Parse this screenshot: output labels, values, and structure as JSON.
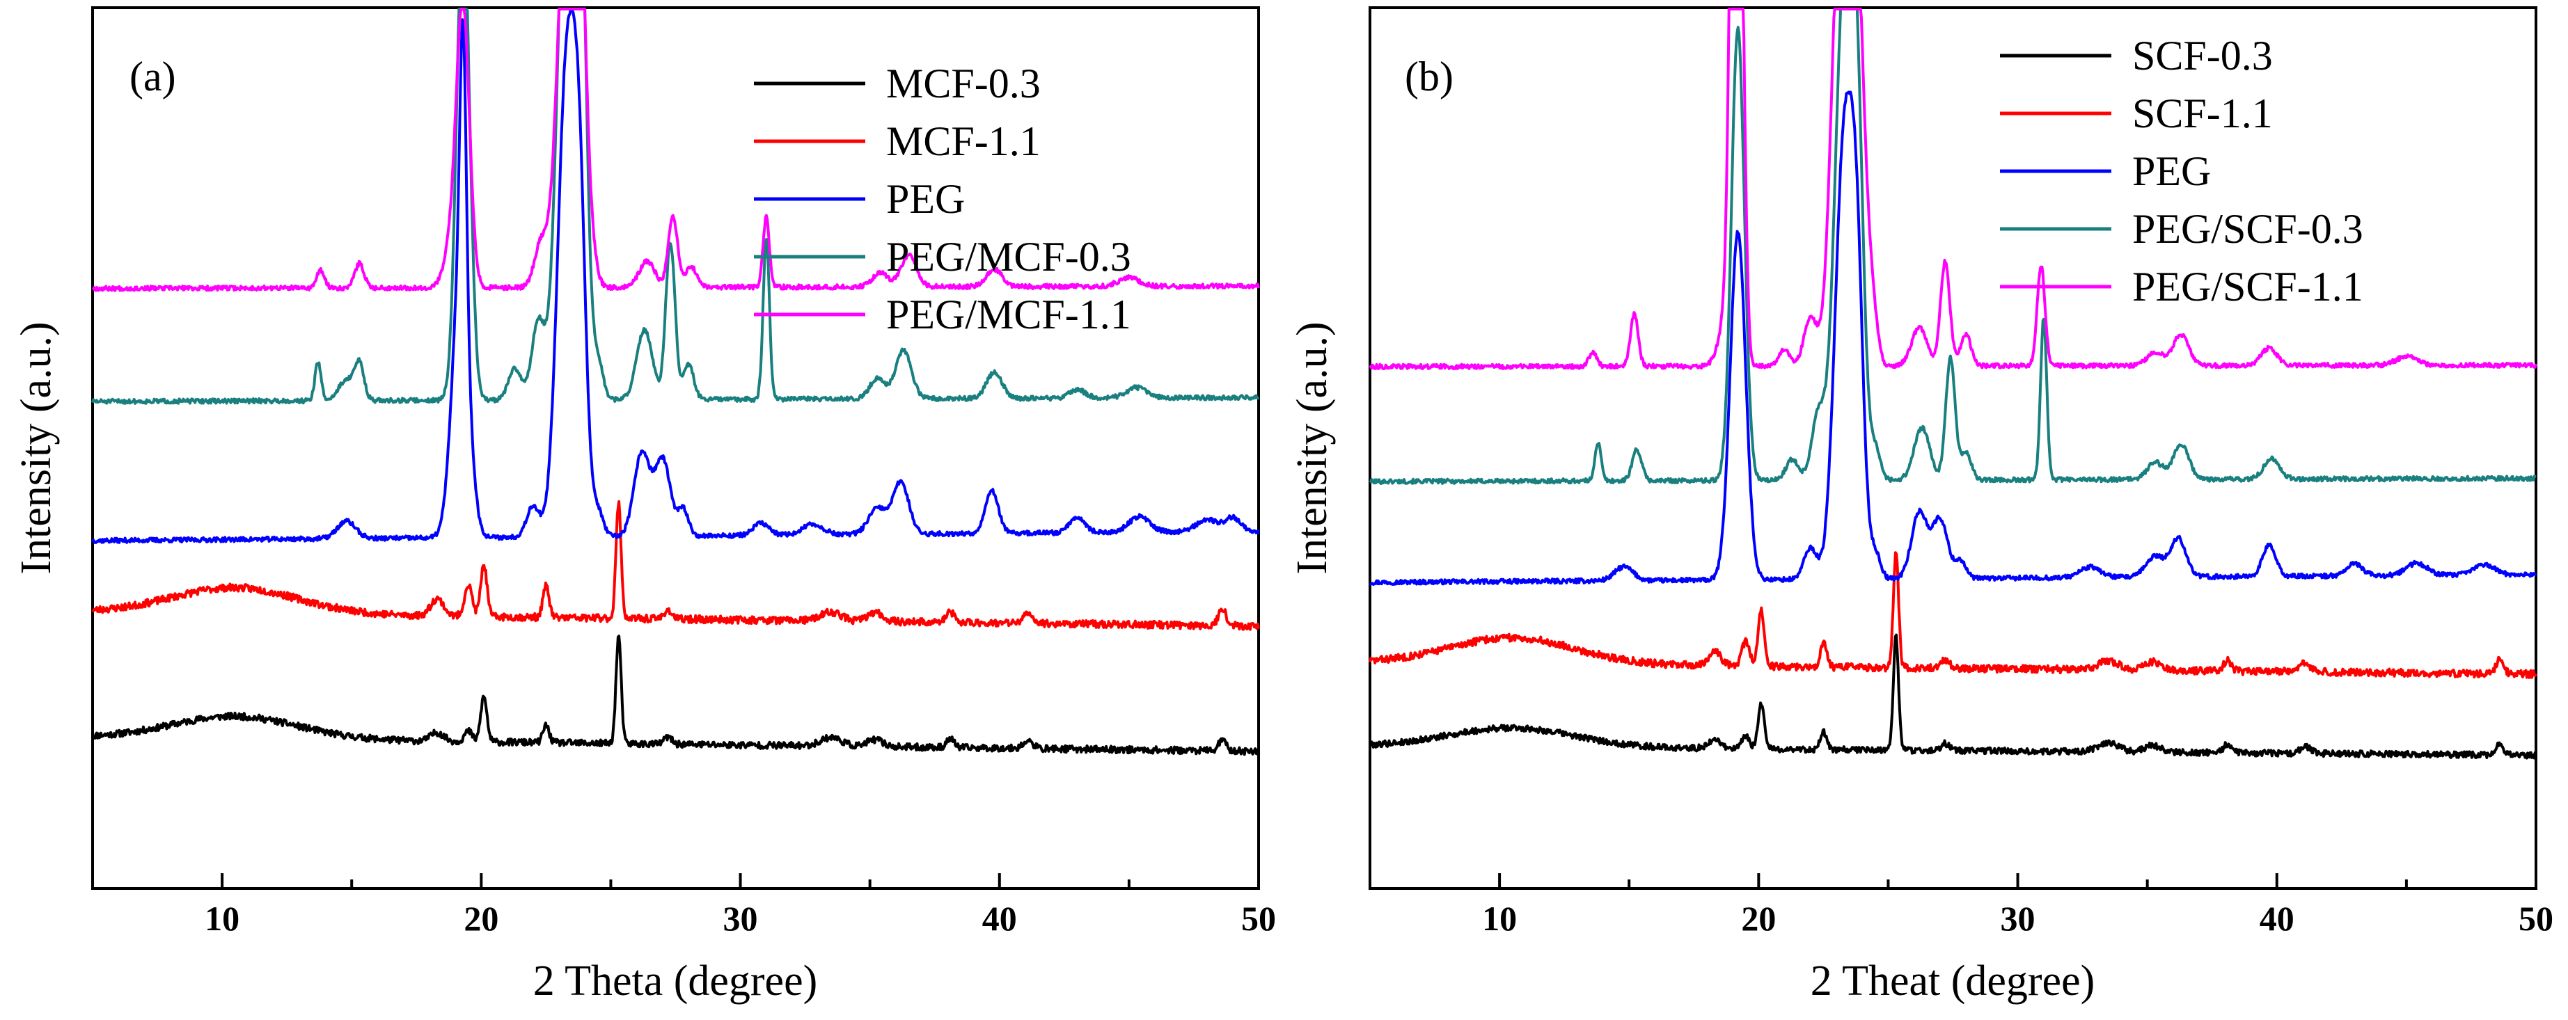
{
  "figure": {
    "description_free": true
  },
  "chart_data": [
    {
      "type": "line",
      "panel_label": "(a)",
      "xlabel": "2 Theta (degree)",
      "ylabel": "Intensity (a.u.)",
      "xlim": [
        5,
        50
      ],
      "xticks": [
        10,
        20,
        30,
        40,
        50
      ],
      "xtick_labels": [
        "10",
        "20",
        "30",
        "40",
        "50"
      ],
      "y_units": "arbitrary",
      "legend_position": "top-right",
      "series": [
        {
          "name": "MCF-0.3",
          "color": "#000000",
          "baseline": 35,
          "slope": 0.18,
          "noise": 1.2,
          "seed": 11,
          "peaks": [
            [
              10.5,
              13,
              2.4
            ],
            [
              18.3,
              5,
              0.25
            ],
            [
              19.5,
              6,
              0.15
            ],
            [
              20.1,
              26,
              0.12
            ],
            [
              22.5,
              10,
              0.12
            ],
            [
              25.3,
              62,
              0.1
            ],
            [
              27.2,
              4,
              0.15
            ],
            [
              33.5,
              5,
              0.4
            ],
            [
              35.2,
              4,
              0.3
            ],
            [
              38.1,
              5,
              0.15
            ],
            [
              41.1,
              4,
              0.2
            ],
            [
              48.6,
              6,
              0.15
            ]
          ]
        },
        {
          "name": "MCF-1.1",
          "color": "#ff0000",
          "baseline": 107,
          "slope": 0.18,
          "noise": 1.3,
          "seed": 23,
          "peaks": [
            [
              10.5,
              15,
              2.4
            ],
            [
              18.3,
              10,
              0.25
            ],
            [
              19.5,
              18,
              0.15
            ],
            [
              20.1,
              30,
              0.12
            ],
            [
              22.5,
              18,
              0.12
            ],
            [
              25.3,
              66,
              0.1
            ],
            [
              27.2,
              5,
              0.15
            ],
            [
              33.5,
              5,
              0.4
            ],
            [
              35.2,
              5,
              0.3
            ],
            [
              38.1,
              6,
              0.15
            ],
            [
              41.1,
              5,
              0.2
            ],
            [
              48.6,
              10,
              0.15
            ]
          ]
        },
        {
          "name": "PEG",
          "color": "#0000ff",
          "baseline": 148,
          "slope": -0.12,
          "noise": 0.8,
          "seed": 37,
          "peaks": [
            [
              14.8,
              10,
              0.35
            ],
            [
              19.2,
              155,
              0.32
            ],
            [
              19.3,
              150,
              0.12
            ],
            [
              22.0,
              18,
              0.25
            ],
            [
              23.3,
              270,
              0.35
            ],
            [
              23.8,
              150,
              0.25
            ],
            [
              24.5,
              15,
              0.2
            ],
            [
              26.2,
              48,
              0.3
            ],
            [
              27.0,
              44,
              0.3
            ],
            [
              27.8,
              15,
              0.2
            ],
            [
              30.8,
              7,
              0.3
            ],
            [
              32.8,
              6,
              0.4
            ],
            [
              35.3,
              15,
              0.35
            ],
            [
              36.2,
              30,
              0.3
            ],
            [
              39.7,
              25,
              0.25
            ],
            [
              43.0,
              9,
              0.3
            ],
            [
              45.4,
              9,
              0.4
            ],
            [
              48.0,
              7,
              0.4
            ],
            [
              49.0,
              8,
              0.3
            ]
          ]
        },
        {
          "name": "PEG/MCF-0.3",
          "color": "#1a7f7f",
          "baseline": 228,
          "slope": -0.05,
          "noise": 0.8,
          "seed": 51,
          "peaks": [
            [
              13.7,
              22,
              0.12
            ],
            [
              14.8,
              12,
              0.3
            ],
            [
              15.3,
              20,
              0.18
            ],
            [
              19.3,
              278,
              0.25
            ],
            [
              21.3,
              18,
              0.25
            ],
            [
              22.2,
              45,
              0.25
            ],
            [
              23.3,
              320,
              0.35
            ],
            [
              23.8,
              250,
              0.25
            ],
            [
              24.5,
              22,
              0.2
            ],
            [
              26.3,
              40,
              0.3
            ],
            [
              27.3,
              90,
              0.18
            ],
            [
              28.0,
              20,
              0.2
            ],
            [
              31.0,
              93,
              0.12
            ],
            [
              35.3,
              12,
              0.3
            ],
            [
              36.3,
              28,
              0.3
            ],
            [
              39.8,
              15,
              0.3
            ],
            [
              43.0,
              5,
              0.3
            ],
            [
              45.3,
              6,
              0.4
            ]
          ]
        },
        {
          "name": "PEG/MCF-1.1",
          "color": "#ff00ff",
          "baseline": 293,
          "slope": -0.03,
          "noise": 0.8,
          "seed": 67,
          "peaks": [
            [
              13.8,
              10,
              0.15
            ],
            [
              15.3,
              14,
              0.18
            ],
            [
              18.9,
              25,
              0.3
            ],
            [
              19.3,
              155,
              0.25
            ],
            [
              22.3,
              25,
              0.25
            ],
            [
              23.3,
              230,
              0.35
            ],
            [
              23.8,
              170,
              0.25
            ],
            [
              24.3,
              12,
              0.2
            ],
            [
              26.4,
              15,
              0.3
            ],
            [
              27.4,
              40,
              0.18
            ],
            [
              28.1,
              12,
              0.2
            ],
            [
              31.0,
              40,
              0.12
            ],
            [
              35.4,
              8,
              0.3
            ],
            [
              36.5,
              18,
              0.3
            ],
            [
              39.8,
              10,
              0.3
            ],
            [
              45.0,
              5,
              0.4
            ]
          ]
        }
      ]
    },
    {
      "type": "line",
      "panel_label": "(b)",
      "xlabel": "2 Theat (degree)",
      "ylabel": "Intensity (a.u.)",
      "xlim": [
        5,
        50
      ],
      "xticks": [
        10,
        20,
        30,
        40,
        50
      ],
      "xtick_labels": [
        "10",
        "20",
        "30",
        "40",
        "50"
      ],
      "y_units": "arbitrary",
      "legend_position": "top-right",
      "series": [
        {
          "name": "SCF-0.3",
          "color": "#000000",
          "baseline": 30,
          "slope": 0.12,
          "noise": 1.1,
          "seed": 79,
          "peaks": [
            [
              10.5,
              11,
              2.4
            ],
            [
              18.3,
              5,
              0.25
            ],
            [
              19.5,
              7,
              0.15
            ],
            [
              20.1,
              26,
              0.12
            ],
            [
              22.5,
              10,
              0.12
            ],
            [
              25.3,
              66,
              0.1
            ],
            [
              27.2,
              4,
              0.15
            ],
            [
              33.5,
              5,
              0.4
            ],
            [
              35.2,
              4,
              0.3
            ],
            [
              38.1,
              5,
              0.15
            ],
            [
              41.1,
              4,
              0.2
            ],
            [
              48.6,
              6,
              0.15
            ]
          ]
        },
        {
          "name": "SCF-1.1",
          "color": "#ff0000",
          "baseline": 78,
          "slope": 0.15,
          "noise": 1.3,
          "seed": 83,
          "peaks": [
            [
              10.5,
              15,
              2.4
            ],
            [
              18.3,
              8,
              0.25
            ],
            [
              19.5,
              14,
              0.15
            ],
            [
              20.1,
              32,
              0.12
            ],
            [
              22.5,
              14,
              0.12
            ],
            [
              25.3,
              66,
              0.1
            ],
            [
              27.2,
              5,
              0.15
            ],
            [
              33.5,
              5,
              0.4
            ],
            [
              35.2,
              5,
              0.3
            ],
            [
              38.1,
              6,
              0.15
            ],
            [
              41.1,
              5,
              0.2
            ],
            [
              48.6,
              8,
              0.15
            ]
          ]
        },
        {
          "name": "PEG",
          "color": "#0000ff",
          "baseline": 124,
          "slope": -0.1,
          "noise": 0.8,
          "seed": 97,
          "peaks": [
            [
              14.8,
              8,
              0.35
            ],
            [
              19.2,
              200,
              0.3
            ],
            [
              22.0,
              18,
              0.25
            ],
            [
              23.3,
              250,
              0.35
            ],
            [
              23.8,
              140,
              0.25
            ],
            [
              24.5,
              15,
              0.2
            ],
            [
              26.2,
              38,
              0.3
            ],
            [
              27.0,
              34,
              0.3
            ],
            [
              27.8,
              10,
              0.2
            ],
            [
              32.8,
              6,
              0.4
            ],
            [
              35.3,
              12,
              0.35
            ],
            [
              36.2,
              22,
              0.3
            ],
            [
              39.7,
              18,
              0.25
            ],
            [
              43.0,
              7,
              0.3
            ],
            [
              45.4,
              7,
              0.4
            ],
            [
              48.0,
              6,
              0.4
            ]
          ]
        },
        {
          "name": "PEG/SCF-0.3",
          "color": "#1a7f7f",
          "baseline": 182,
          "slope": -0.04,
          "noise": 0.8,
          "seed": 101,
          "peaks": [
            [
              13.8,
              22,
              0.12
            ],
            [
              15.3,
              18,
              0.18
            ],
            [
              19.2,
              260,
              0.25
            ],
            [
              21.3,
              12,
              0.25
            ],
            [
              22.3,
              38,
              0.25
            ],
            [
              23.3,
              285,
              0.35
            ],
            [
              23.8,
              170,
              0.25
            ],
            [
              24.5,
              18,
              0.2
            ],
            [
              26.3,
              30,
              0.3
            ],
            [
              27.4,
              70,
              0.18
            ],
            [
              28.0,
              16,
              0.2
            ],
            [
              31.0,
              93,
              0.12
            ],
            [
              35.3,
              10,
              0.3
            ],
            [
              36.3,
              20,
              0.3
            ],
            [
              39.8,
              12,
              0.3
            ]
          ]
        },
        {
          "name": "PEG/SCF-1.1",
          "color": "#ff00ff",
          "baseline": 248,
          "slope": -0.02,
          "noise": 0.8,
          "seed": 113,
          "peaks": [
            [
              13.6,
              8,
              0.15
            ],
            [
              15.2,
              30,
              0.15
            ],
            [
              18.8,
              30,
              0.3
            ],
            [
              19.1,
              450,
              0.18
            ],
            [
              19.35,
              120,
              0.15
            ],
            [
              21.0,
              10,
              0.2
            ],
            [
              22.0,
              28,
              0.25
            ],
            [
              23.2,
              285,
              0.35
            ],
            [
              23.8,
              200,
              0.3
            ],
            [
              24.4,
              25,
              0.2
            ],
            [
              26.2,
              22,
              0.3
            ],
            [
              27.2,
              60,
              0.18
            ],
            [
              28.0,
              18,
              0.2
            ],
            [
              30.9,
              58,
              0.15
            ],
            [
              35.3,
              8,
              0.3
            ],
            [
              36.3,
              18,
              0.3
            ],
            [
              39.7,
              10,
              0.3
            ],
            [
              45.0,
              5,
              0.4
            ]
          ]
        }
      ]
    }
  ]
}
